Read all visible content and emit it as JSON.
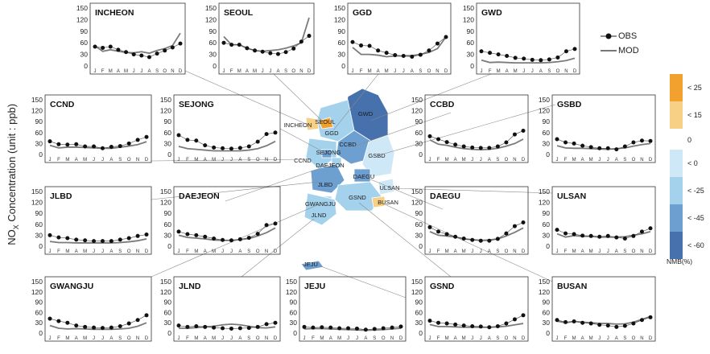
{
  "figure": {
    "y_title_main": "NO",
    "y_title_sub": "X",
    "y_title_rest": " Concentration (unit : ppb)",
    "legend": {
      "obs": "OBS",
      "mod": "MOD"
    },
    "nmb_scale": {
      "title": "NMB(%)",
      "zero": "0",
      "bins": [
        {
          "label": "< 25",
          "color": "#f2a12e"
        },
        {
          "label": "< 15",
          "color": "#f7cf85"
        },
        {
          "label": "< 0",
          "color": "#cfe8f7"
        },
        {
          "label": "< -25",
          "color": "#a4d2ec"
        },
        {
          "label": "< -45",
          "color": "#6d9fd0"
        },
        {
          "label": "< -60",
          "color": "#4671ad"
        }
      ]
    },
    "regions": [
      {
        "name": "INCHEON",
        "color": "#f7cf85"
      },
      {
        "name": "SEOUL",
        "color": "#f2a12e"
      },
      {
        "name": "GGD",
        "color": "#a4d2ec"
      },
      {
        "name": "GWD",
        "color": "#4671ad"
      },
      {
        "name": "CCND",
        "color": "#a4d2ec"
      },
      {
        "name": "SEJONG",
        "color": "#6d9fd0"
      },
      {
        "name": "CCBD",
        "color": "#6d9fd0"
      },
      {
        "name": "GSBD",
        "color": "#cfe8f7"
      },
      {
        "name": "DAEJEON",
        "color": "#a4d2ec"
      },
      {
        "name": "JLBD",
        "color": "#6d9fd0"
      },
      {
        "name": "DAEGU",
        "color": "#6d9fd0"
      },
      {
        "name": "GWANGJU",
        "color": "#a4d2ec"
      },
      {
        "name": "ULSAN",
        "color": "#cfe8f7"
      },
      {
        "name": "JLND",
        "color": "#a4d2ec"
      },
      {
        "name": "GSND",
        "color": "#a4d2ec"
      },
      {
        "name": "BUSAN",
        "color": "#f7cf85"
      },
      {
        "name": "JEJU",
        "color": "#6d9fd0"
      }
    ]
  },
  "chart_data": [
    {
      "type": "line",
      "title": "INCHEON",
      "x": [
        "J",
        "F",
        "M",
        "A",
        "M",
        "J",
        "J",
        "A",
        "S",
        "O",
        "N",
        "D"
      ],
      "ylim": [
        0,
        150
      ],
      "yticks": [
        0,
        30,
        60,
        90,
        120,
        150
      ],
      "series": [
        {
          "name": "OBS",
          "values": [
            50,
            47,
            50,
            42,
            36,
            30,
            27,
            23,
            32,
            40,
            48,
            58
          ]
        },
        {
          "name": "MOD",
          "values": [
            52,
            38,
            42,
            38,
            35,
            34,
            37,
            33,
            40,
            45,
            53,
            85
          ]
        }
      ]
    },
    {
      "type": "line",
      "title": "SEOUL",
      "x": [
        "J",
        "F",
        "M",
        "A",
        "M",
        "J",
        "J",
        "A",
        "S",
        "O",
        "N",
        "D"
      ],
      "ylim": [
        0,
        150
      ],
      "yticks": [
        0,
        30,
        60,
        90,
        120,
        150
      ],
      "series": [
        {
          "name": "OBS",
          "values": [
            60,
            55,
            55,
            46,
            40,
            37,
            33,
            31,
            36,
            45,
            63,
            78
          ]
        },
        {
          "name": "MOD",
          "values": [
            76,
            55,
            55,
            46,
            40,
            38,
            40,
            42,
            46,
            52,
            60,
            125
          ]
        }
      ]
    },
    {
      "type": "line",
      "title": "GGD",
      "x": [
        "J",
        "F",
        "M",
        "A",
        "M",
        "J",
        "J",
        "A",
        "S",
        "O",
        "N",
        "D"
      ],
      "ylim": [
        0,
        150
      ],
      "yticks": [
        0,
        30,
        60,
        90,
        120,
        150
      ],
      "series": [
        {
          "name": "OBS",
          "values": [
            62,
            53,
            52,
            40,
            34,
            28,
            26,
            24,
            29,
            40,
            58,
            75
          ]
        },
        {
          "name": "MOD",
          "values": [
            48,
            30,
            30,
            28,
            24,
            26,
            26,
            27,
            30,
            35,
            45,
            75
          ]
        }
      ]
    },
    {
      "type": "line",
      "title": "GWD",
      "x": [
        "J",
        "F",
        "M",
        "A",
        "M",
        "J",
        "J",
        "A",
        "S",
        "O",
        "N",
        "D"
      ],
      "ylim": [
        0,
        150
      ],
      "yticks": [
        0,
        30,
        60,
        90,
        120,
        150
      ],
      "series": [
        {
          "name": "OBS",
          "values": [
            38,
            34,
            30,
            26,
            21,
            19,
            16,
            15,
            17,
            22,
            38,
            44
          ]
        },
        {
          "name": "MOD",
          "values": [
            15,
            9,
            10,
            9,
            8,
            8,
            8,
            8,
            9,
            11,
            14,
            20
          ]
        }
      ]
    },
    {
      "type": "line",
      "title": "CCND",
      "x": [
        "J",
        "F",
        "M",
        "A",
        "M",
        "J",
        "J",
        "A",
        "S",
        "O",
        "N",
        "D"
      ],
      "ylim": [
        0,
        150
      ],
      "yticks": [
        0,
        30,
        60,
        90,
        120,
        150
      ],
      "series": [
        {
          "name": "OBS",
          "values": [
            36,
            28,
            27,
            28,
            22,
            22,
            17,
            21,
            23,
            30,
            40,
            48
          ]
        },
        {
          "name": "MOD",
          "values": [
            25,
            18,
            20,
            20,
            19,
            18,
            17,
            17,
            20,
            23,
            27,
            35
          ]
        }
      ]
    },
    {
      "type": "line",
      "title": "SEJONG",
      "x": [
        "J",
        "F",
        "M",
        "A",
        "M",
        "J",
        "J",
        "A",
        "S",
        "O",
        "N",
        "D"
      ],
      "ylim": [
        0,
        150
      ],
      "yticks": [
        0,
        30,
        60,
        90,
        120,
        150
      ],
      "series": [
        {
          "name": "OBS",
          "values": [
            53,
            40,
            38,
            25,
            19,
            17,
            16,
            18,
            22,
            35,
            56,
            60
          ]
        },
        {
          "name": "MOD",
          "values": [
            22,
            16,
            14,
            12,
            10,
            10,
            10,
            10,
            12,
            16,
            24,
            36
          ]
        }
      ]
    },
    {
      "type": "line",
      "title": "CCBD",
      "x": [
        "J",
        "F",
        "M",
        "A",
        "M",
        "J",
        "J",
        "A",
        "S",
        "O",
        "N",
        "D"
      ],
      "ylim": [
        0,
        150
      ],
      "yticks": [
        0,
        30,
        60,
        90,
        120,
        150
      ],
      "series": [
        {
          "name": "OBS",
          "values": [
            50,
            42,
            34,
            27,
            22,
            19,
            18,
            18,
            22,
            33,
            55,
            65
          ]
        },
        {
          "name": "MOD",
          "values": [
            40,
            28,
            25,
            20,
            16,
            14,
            13,
            14,
            17,
            23,
            30,
            42
          ]
        }
      ]
    },
    {
      "type": "line",
      "title": "GSBD",
      "x": [
        "J",
        "F",
        "M",
        "A",
        "M",
        "J",
        "J",
        "A",
        "S",
        "O",
        "N",
        "D"
      ],
      "ylim": [
        0,
        150
      ],
      "yticks": [
        0,
        30,
        60,
        90,
        120,
        150
      ],
      "series": [
        {
          "name": "OBS",
          "values": [
            42,
            33,
            30,
            24,
            20,
            17,
            17,
            14,
            22,
            33,
            38,
            37
          ]
        },
        {
          "name": "MOD",
          "values": [
            24,
            18,
            17,
            17,
            16,
            15,
            14,
            16,
            18,
            23,
            27,
            30
          ]
        }
      ]
    },
    {
      "type": "line",
      "title": "JLBD",
      "x": [
        "J",
        "F",
        "M",
        "A",
        "M",
        "J",
        "J",
        "A",
        "S",
        "O",
        "N",
        "D"
      ],
      "ylim": [
        0,
        150
      ],
      "yticks": [
        0,
        30,
        60,
        90,
        120,
        150
      ],
      "series": [
        {
          "name": "OBS",
          "values": [
            30,
            24,
            22,
            18,
            16,
            14,
            14,
            14,
            18,
            22,
            28,
            32
          ]
        },
        {
          "name": "MOD",
          "values": [
            13,
            10,
            10,
            9,
            9,
            9,
            9,
            9,
            10,
            12,
            15,
            20
          ]
        }
      ]
    },
    {
      "type": "line",
      "title": "DAEJEON",
      "x": [
        "J",
        "F",
        "M",
        "A",
        "M",
        "J",
        "J",
        "A",
        "S",
        "O",
        "N",
        "D"
      ],
      "ylim": [
        0,
        150
      ],
      "yticks": [
        0,
        30,
        60,
        90,
        120,
        150
      ],
      "series": [
        {
          "name": "OBS",
          "values": [
            40,
            33,
            30,
            26,
            21,
            17,
            16,
            19,
            23,
            34,
            58,
            62
          ]
        },
        {
          "name": "MOD",
          "values": [
            30,
            24,
            22,
            20,
            17,
            16,
            16,
            18,
            21,
            28,
            37,
            50
          ]
        }
      ]
    },
    {
      "type": "line",
      "title": "DAEGU",
      "x": [
        "J",
        "F",
        "M",
        "A",
        "M",
        "J",
        "J",
        "A",
        "S",
        "O",
        "N",
        "D"
      ],
      "ylim": [
        0,
        150
      ],
      "yticks": [
        0,
        30,
        60,
        90,
        120,
        150
      ],
      "series": [
        {
          "name": "OBS",
          "values": [
            52,
            40,
            33,
            26,
            21,
            17,
            15,
            15,
            20,
            35,
            55,
            65
          ]
        },
        {
          "name": "MOD",
          "values": [
            40,
            30,
            28,
            25,
            20,
            18,
            16,
            17,
            20,
            28,
            38,
            50
          ]
        }
      ]
    },
    {
      "type": "line",
      "title": "ULSAN",
      "x": [
        "J",
        "F",
        "M",
        "A",
        "M",
        "J",
        "J",
        "A",
        "S",
        "O",
        "N",
        "D"
      ],
      "ylim": [
        0,
        150
      ],
      "yticks": [
        0,
        30,
        60,
        90,
        120,
        150
      ],
      "series": [
        {
          "name": "OBS",
          "values": [
            45,
            35,
            33,
            29,
            28,
            26,
            28,
            24,
            21,
            28,
            40,
            49
          ]
        },
        {
          "name": "MOD",
          "values": [
            34,
            25,
            29,
            27,
            27,
            25,
            25,
            25,
            26,
            30,
            34,
            40
          ]
        }
      ]
    },
    {
      "type": "line",
      "title": "GWANGJU",
      "x": [
        "J",
        "F",
        "M",
        "A",
        "M",
        "J",
        "J",
        "A",
        "S",
        "O",
        "N",
        "D"
      ],
      "ylim": [
        0,
        150
      ],
      "yticks": [
        0,
        30,
        60,
        90,
        120,
        150
      ],
      "series": [
        {
          "name": "OBS",
          "values": [
            42,
            35,
            30,
            22,
            18,
            16,
            15,
            16,
            20,
            28,
            38,
            52
          ]
        },
        {
          "name": "MOD",
          "values": [
            22,
            14,
            12,
            13,
            12,
            11,
            11,
            11,
            12,
            14,
            20,
            30
          ]
        }
      ]
    },
    {
      "type": "line",
      "title": "JLND",
      "x": [
        "J",
        "F",
        "M",
        "A",
        "M",
        "J",
        "J",
        "A",
        "S",
        "O",
        "N",
        "D"
      ],
      "ylim": [
        0,
        150
      ],
      "yticks": [
        0,
        30,
        60,
        90,
        120,
        150
      ],
      "series": [
        {
          "name": "OBS",
          "values": [
            22,
            18,
            20,
            18,
            16,
            14,
            13,
            14,
            15,
            18,
            26,
            30
          ]
        },
        {
          "name": "MOD",
          "values": [
            14,
            14,
            16,
            18,
            20,
            24,
            26,
            24,
            20,
            16,
            15,
            18
          ]
        }
      ]
    },
    {
      "type": "line",
      "title": "JEJU",
      "x": [
        "J",
        "F",
        "M",
        "A",
        "M",
        "J",
        "J",
        "A",
        "S",
        "O",
        "N",
        "D"
      ],
      "ylim": [
        0,
        150
      ],
      "yticks": [
        0,
        30,
        60,
        90,
        120,
        150
      ],
      "series": [
        {
          "name": "OBS",
          "values": [
            18,
            16,
            17,
            16,
            14,
            14,
            13,
            10,
            12,
            14,
            16,
            19
          ]
        },
        {
          "name": "MOD",
          "values": [
            12,
            13,
            13,
            12,
            11,
            10,
            9,
            8,
            9,
            10,
            12,
            14
          ]
        }
      ]
    },
    {
      "type": "line",
      "title": "GSND",
      "x": [
        "J",
        "F",
        "M",
        "A",
        "M",
        "J",
        "J",
        "A",
        "S",
        "O",
        "N",
        "D"
      ],
      "ylim": [
        0,
        150
      ],
      "yticks": [
        0,
        30,
        60,
        90,
        120,
        150
      ],
      "series": [
        {
          "name": "OBS",
          "values": [
            36,
            30,
            28,
            25,
            22,
            20,
            19,
            17,
            20,
            28,
            40,
            52
          ]
        },
        {
          "name": "MOD",
          "values": [
            25,
            19,
            19,
            18,
            17,
            17,
            17,
            17,
            18,
            20,
            24,
            28
          ]
        }
      ]
    },
    {
      "type": "line",
      "title": "BUSAN",
      "x": [
        "J",
        "F",
        "M",
        "A",
        "M",
        "J",
        "J",
        "A",
        "S",
        "O",
        "N",
        "D"
      ],
      "ylim": [
        0,
        150
      ],
      "yticks": [
        0,
        30,
        60,
        90,
        120,
        150
      ],
      "series": [
        {
          "name": "OBS",
          "values": [
            38,
            32,
            34,
            30,
            28,
            24,
            22,
            18,
            21,
            28,
            38,
            46
          ]
        },
        {
          "name": "MOD",
          "values": [
            35,
            30,
            34,
            32,
            30,
            28,
            28,
            26,
            27,
            32,
            40,
            48
          ]
        }
      ]
    }
  ]
}
